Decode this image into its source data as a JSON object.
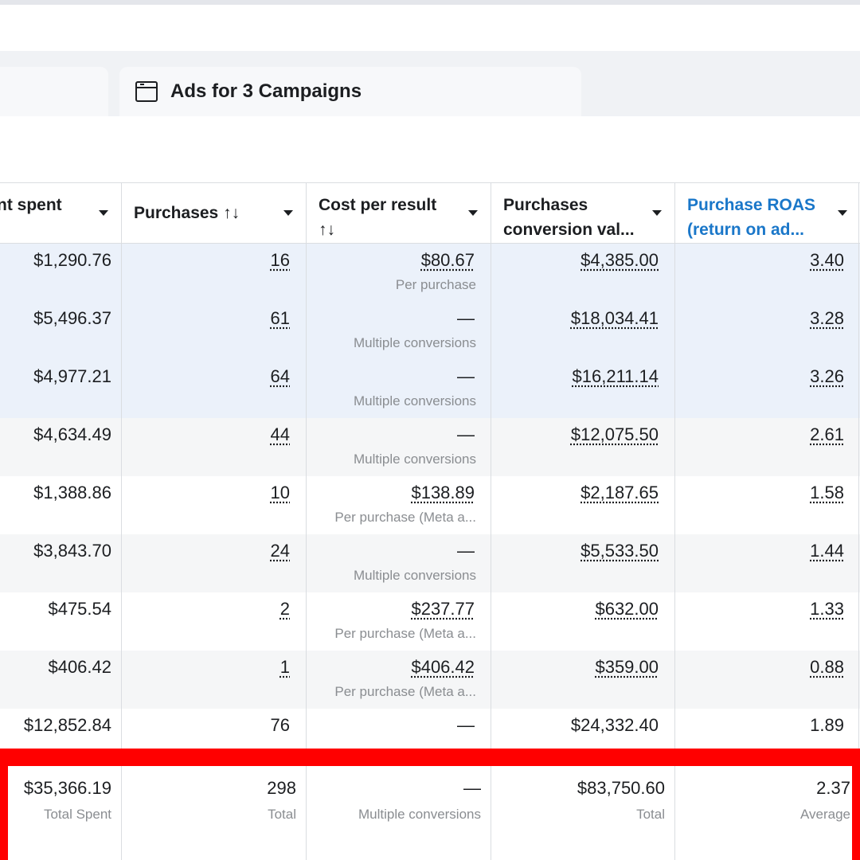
{
  "tab_bar": {
    "tab_label": "Ads for 3 Campaigns"
  },
  "columns": [
    {
      "label": "nt spent",
      "sort": ""
    },
    {
      "label": "Purchases",
      "sort": "↑↓"
    },
    {
      "label": "Cost per result",
      "sort": "↑↓"
    },
    {
      "label": "Purchases conversion val...",
      "sort": ""
    },
    {
      "label": "Purchase ROAS (return on ad...",
      "sort": ""
    }
  ],
  "rows": [
    {
      "spent": "$1,290.76",
      "purchases": "16",
      "cost": "$80.67",
      "cost_sub": "Per purchase",
      "conv_value": "$4,385.00",
      "roas": "3.40"
    },
    {
      "spent": "$5,496.37",
      "purchases": "61",
      "cost": "—",
      "cost_sub": "Multiple conversions",
      "conv_value": "$18,034.41",
      "roas": "3.28"
    },
    {
      "spent": "$4,977.21",
      "purchases": "64",
      "cost": "—",
      "cost_sub": "Multiple conversions",
      "conv_value": "$16,211.14",
      "roas": "3.26"
    },
    {
      "spent": "$4,634.49",
      "purchases": "44",
      "cost": "—",
      "cost_sub": "Multiple conversions",
      "conv_value": "$12,075.50",
      "roas": "2.61"
    },
    {
      "spent": "$1,388.86",
      "purchases": "10",
      "cost": "$138.89",
      "cost_sub": "Per purchase (Meta a...",
      "conv_value": "$2,187.65",
      "roas": "1.58"
    },
    {
      "spent": "$3,843.70",
      "purchases": "24",
      "cost": "—",
      "cost_sub": "Multiple conversions",
      "conv_value": "$5,533.50",
      "roas": "1.44"
    },
    {
      "spent": "$475.54",
      "purchases": "2",
      "cost": "$237.77",
      "cost_sub": "Per purchase (Meta a...",
      "conv_value": "$632.00",
      "roas": "1.33"
    },
    {
      "spent": "$406.42",
      "purchases": "1",
      "cost": "$406.42",
      "cost_sub": "Per purchase (Meta a...",
      "conv_value": "$359.00",
      "roas": "0.88"
    },
    {
      "spent": "$12,852.84",
      "purchases": "76",
      "cost": "—",
      "cost_sub": "",
      "conv_value": "$24,332.40",
      "roas": "1.89"
    }
  ],
  "totals": {
    "spent": "$35,366.19",
    "spent_sub": "Total Spent",
    "purchases": "298",
    "purchases_sub": "Total",
    "cost": "—",
    "cost_sub": "Multiple conversions",
    "conv_value": "$83,750.60",
    "conv_value_sub": "Total",
    "roas": "2.37",
    "roas_sub": "Average"
  },
  "colors": {
    "selected_row": "#ebf1fa",
    "alt_row": "#f5f6f7",
    "highlight_frame": "#ff0000",
    "link_header": "#1a77c9"
  }
}
